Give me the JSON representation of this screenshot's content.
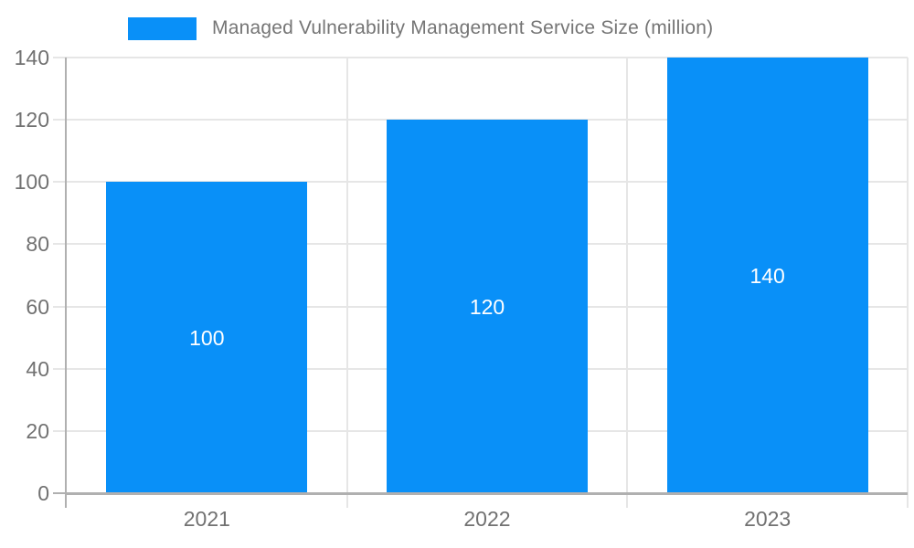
{
  "chart_data": {
    "type": "bar",
    "title": "Managed Vulnerability Management Service Size (million)",
    "categories": [
      "2021",
      "2022",
      "2023"
    ],
    "values": [
      100,
      120,
      140
    ],
    "series": [
      {
        "name": "Managed Vulnerability Management Service Size (million)",
        "values": [
          100,
          120,
          140
        ]
      }
    ],
    "value_labels": [
      "100",
      "120",
      "140"
    ],
    "xlabel": "",
    "ylabel": "",
    "ylim": [
      0,
      140
    ],
    "yticks": [
      0,
      20,
      40,
      60,
      80,
      100,
      120,
      140
    ],
    "grid": true,
    "legend_position": "top",
    "colors": {
      "bar": "#0990f8",
      "value_label_text": "#ffffff",
      "axis_text": "#717171",
      "legend_text": "#757575",
      "axis_line": "#b0b0b0",
      "grid_line": "#e6e6e6",
      "background": "#ffffff"
    }
  }
}
